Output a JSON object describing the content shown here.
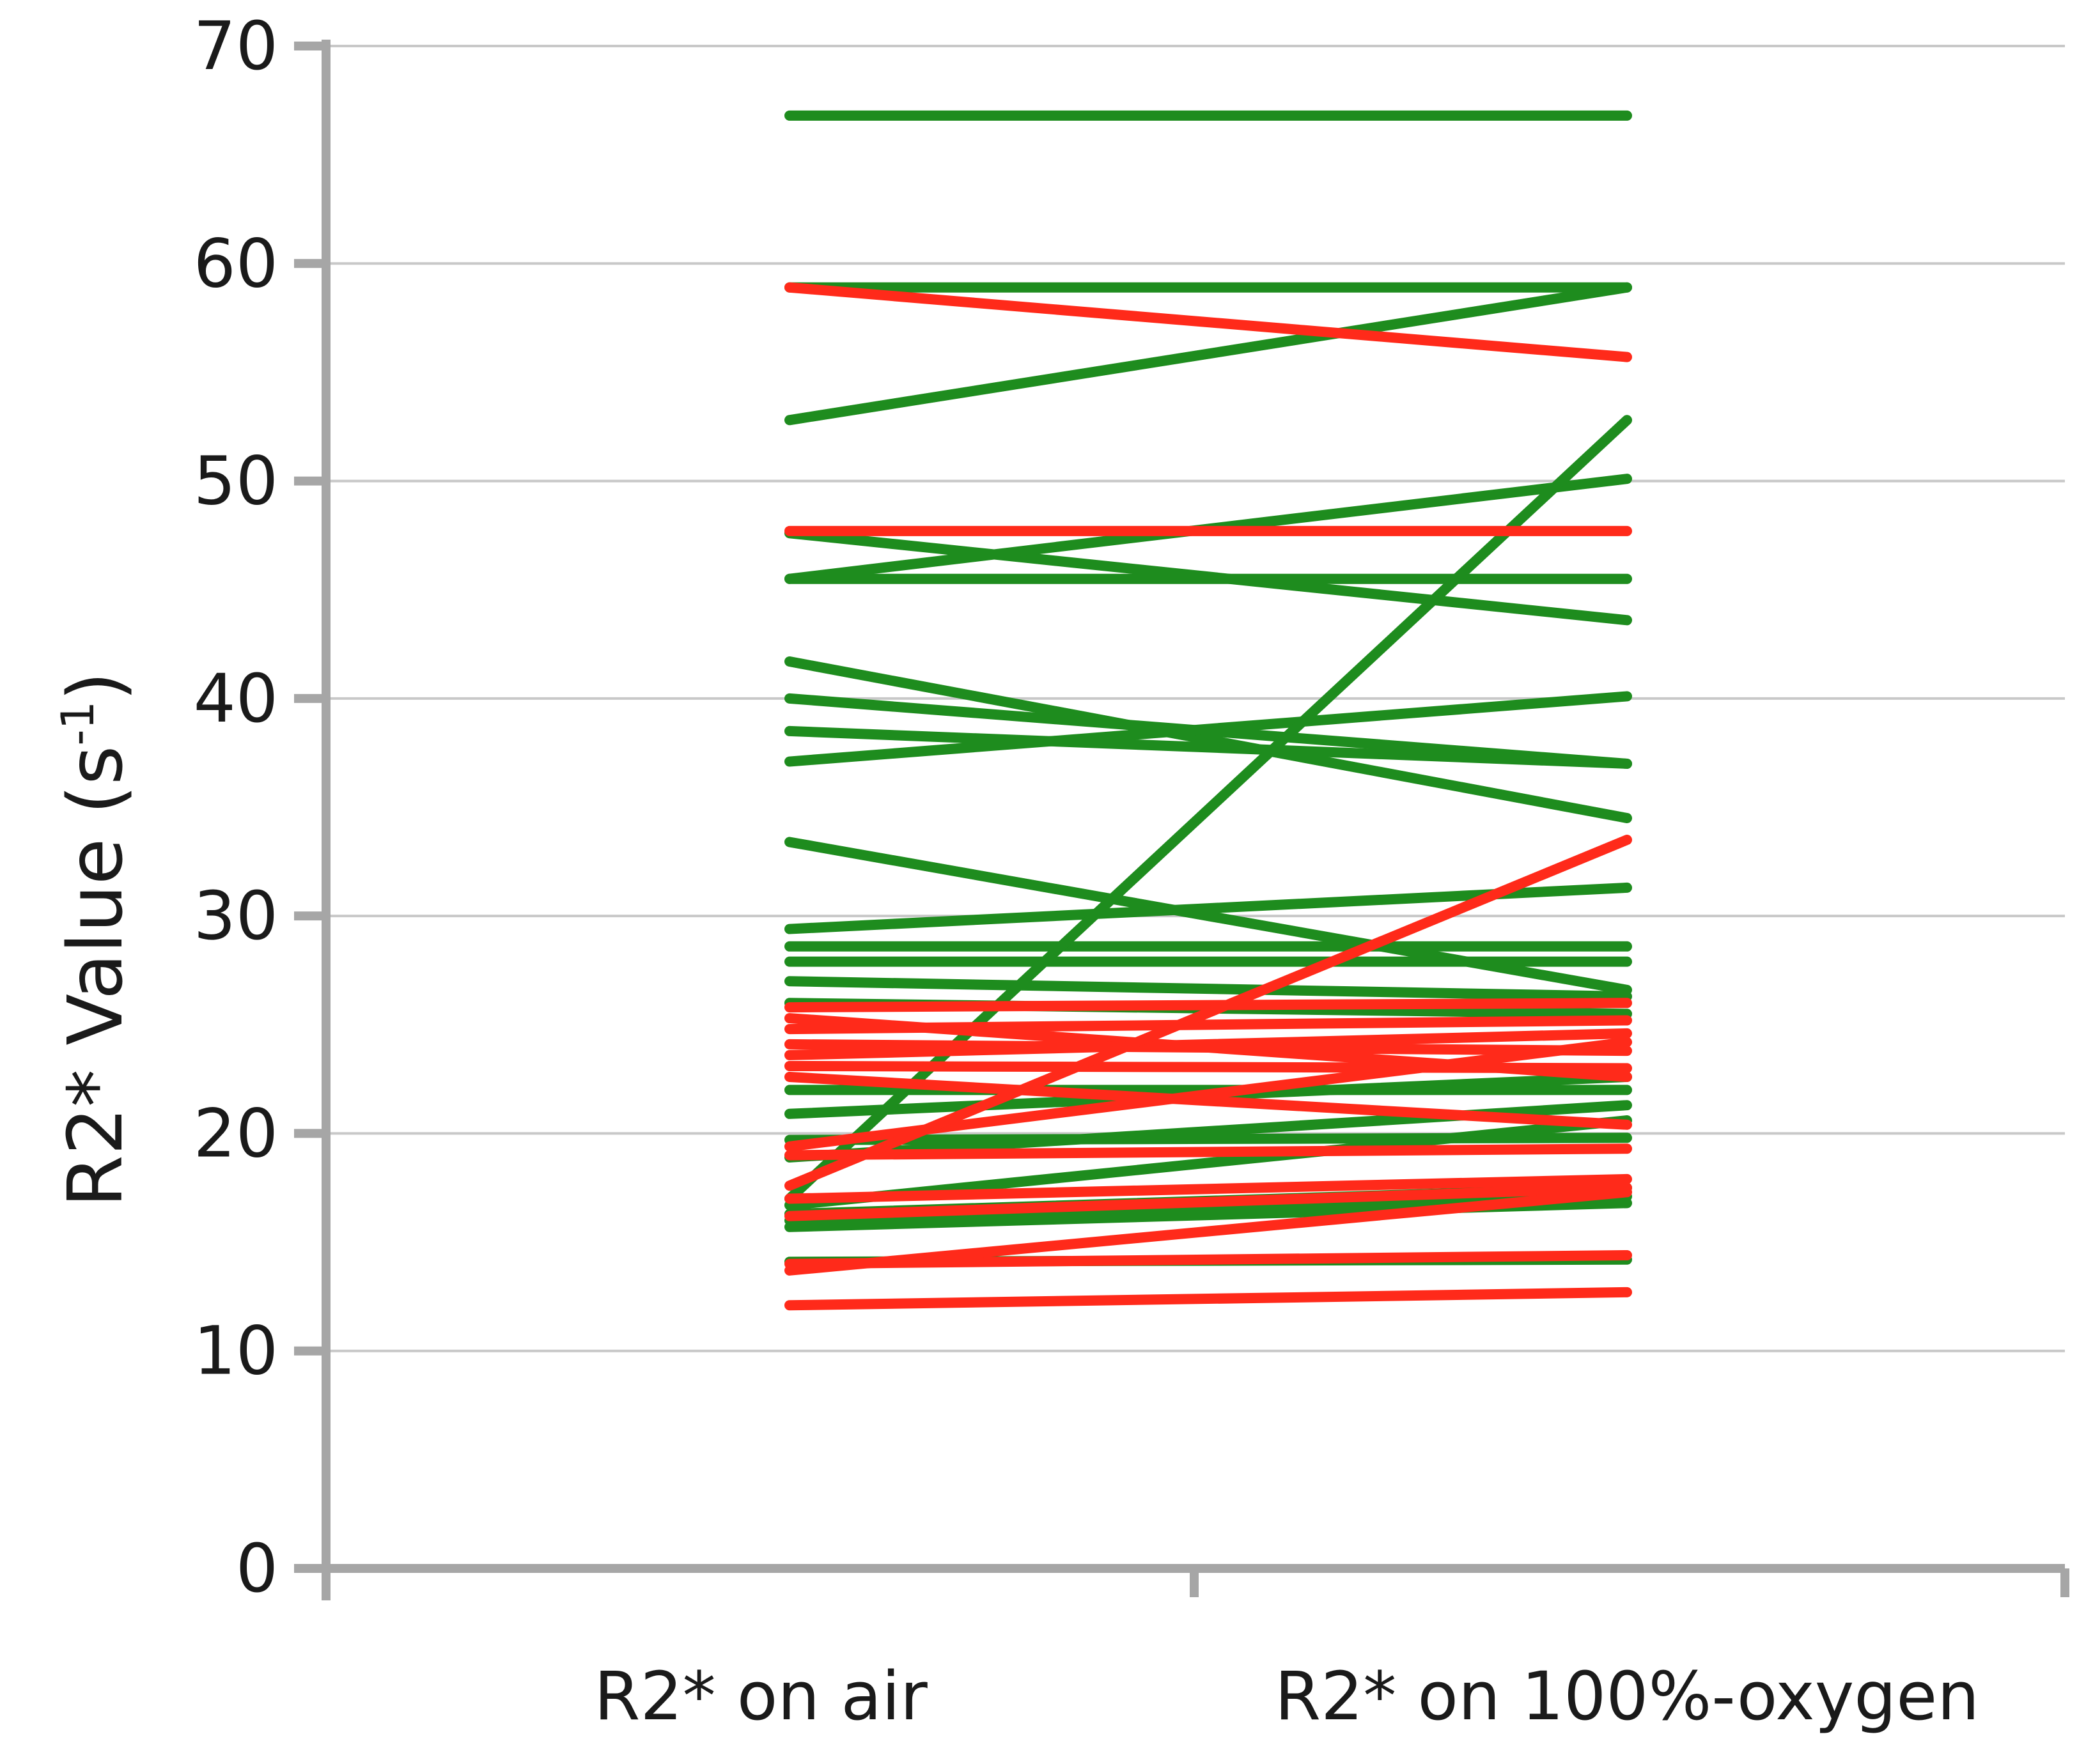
{
  "chart_data": {
    "type": "line",
    "title": "",
    "xlabel": "",
    "ylabel": {
      "base": "R2* Value (s",
      "sup": "-1",
      "suffix": ")"
    },
    "categories": [
      "R2* on air",
      "R2* on 100%-oxygen"
    ],
    "ylim": [
      0,
      70
    ],
    "yticks": [
      0,
      10,
      20,
      30,
      40,
      50,
      60,
      70
    ],
    "grid": true,
    "legend": "none",
    "colors": {
      "green": "#1e8c1e",
      "red": "#ff2a1a",
      "axis": "#a6a6a6",
      "grid": "#c8c8c8"
    },
    "series": [
      {
        "color": "green",
        "values": [
          66.8,
          66.8
        ]
      },
      {
        "color": "green",
        "values": [
          58.9,
          58.9
        ]
      },
      {
        "color": "green",
        "values": [
          52.8,
          58.9
        ]
      },
      {
        "color": "green",
        "values": [
          47.6,
          43.6
        ]
      },
      {
        "color": "green",
        "values": [
          45.5,
          50.1
        ]
      },
      {
        "color": "green",
        "values": [
          45.5,
          45.5
        ]
      },
      {
        "color": "green",
        "values": [
          41.7,
          34.5
        ]
      },
      {
        "color": "green",
        "values": [
          40.0,
          37.0
        ]
      },
      {
        "color": "green",
        "values": [
          38.5,
          37.0
        ]
      },
      {
        "color": "green",
        "values": [
          37.1,
          40.1
        ]
      },
      {
        "color": "green",
        "values": [
          33.4,
          26.6
        ]
      },
      {
        "color": "green",
        "values": [
          29.4,
          31.3
        ]
      },
      {
        "color": "green",
        "values": [
          28.6,
          28.6
        ]
      },
      {
        "color": "green",
        "values": [
          27.9,
          27.9
        ]
      },
      {
        "color": "green",
        "values": [
          27.0,
          26.3
        ]
      },
      {
        "color": "green",
        "values": [
          26.0,
          25.5
        ]
      },
      {
        "color": "green",
        "values": [
          22.0,
          22.0
        ]
      },
      {
        "color": "green",
        "values": [
          20.9,
          22.6
        ]
      },
      {
        "color": "green",
        "values": [
          19.7,
          19.8
        ]
      },
      {
        "color": "green",
        "values": [
          18.9,
          21.3
        ]
      },
      {
        "color": "green",
        "values": [
          17.0,
          52.8
        ]
      },
      {
        "color": "green",
        "values": [
          16.7,
          20.6
        ]
      },
      {
        "color": "green",
        "values": [
          16.3,
          17.5
        ]
      },
      {
        "color": "green",
        "values": [
          16.0,
          17.1
        ]
      },
      {
        "color": "green",
        "values": [
          15.7,
          16.8
        ]
      },
      {
        "color": "green",
        "values": [
          14.1,
          14.2
        ]
      },
      {
        "color": "red",
        "values": [
          58.9,
          55.7
        ]
      },
      {
        "color": "red",
        "values": [
          47.7,
          47.7
        ]
      },
      {
        "color": "red",
        "values": [
          25.8,
          26.0
        ]
      },
      {
        "color": "red",
        "values": [
          25.3,
          22.6
        ]
      },
      {
        "color": "red",
        "values": [
          24.8,
          25.2
        ]
      },
      {
        "color": "red",
        "values": [
          24.1,
          23.8
        ]
      },
      {
        "color": "red",
        "values": [
          23.6,
          24.6
        ]
      },
      {
        "color": "red",
        "values": [
          23.1,
          23.0
        ]
      },
      {
        "color": "red",
        "values": [
          22.6,
          20.4
        ]
      },
      {
        "color": "red",
        "values": [
          19.4,
          24.2
        ]
      },
      {
        "color": "red",
        "values": [
          19.0,
          19.3
        ]
      },
      {
        "color": "red",
        "values": [
          17.6,
          33.5
        ]
      },
      {
        "color": "red",
        "values": [
          17.0,
          17.9
        ]
      },
      {
        "color": "red",
        "values": [
          16.2,
          17.5
        ]
      },
      {
        "color": "red",
        "values": [
          14.0,
          14.4
        ]
      },
      {
        "color": "red",
        "values": [
          13.7,
          17.3
        ]
      },
      {
        "color": "red",
        "values": [
          12.1,
          12.7
        ]
      }
    ]
  }
}
